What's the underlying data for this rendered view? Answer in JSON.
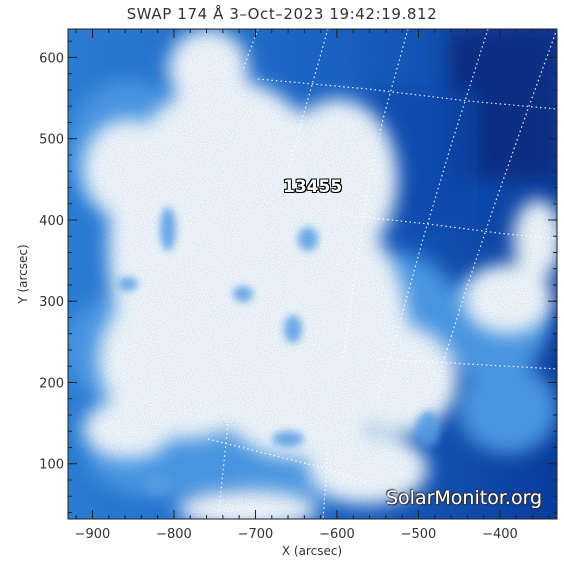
{
  "title": "SWAP  174 Å   3–Oct–2023 19:42:19.812",
  "image": {
    "instrument": "SWAP",
    "wavelength": "174 Å",
    "date": "3–Oct–2023",
    "time": "19:42:19.812"
  },
  "colormap": {
    "bright": "#ffffff",
    "mid": "#3f8fe0",
    "dark": "#0b3fa0",
    "deep": "#072c80"
  },
  "active_region": {
    "number": "13455"
  },
  "watermark": "SolarMonitor.org",
  "axes": {
    "x_label": "X (arcsec)",
    "y_label": "Y (arcsec)",
    "x_range": [
      -930,
      -330
    ],
    "y_range": [
      32,
      635
    ],
    "x_ticks": [
      {
        "value": -900,
        "label": "−900"
      },
      {
        "value": -800,
        "label": "−800"
      },
      {
        "value": -700,
        "label": "−700"
      },
      {
        "value": -600,
        "label": "−600"
      },
      {
        "value": -500,
        "label": "−500"
      },
      {
        "value": -400,
        "label": "−400"
      }
    ],
    "y_ticks": [
      {
        "value": 100,
        "label": "100"
      },
      {
        "value": 200,
        "label": "200"
      },
      {
        "value": 300,
        "label": "300"
      },
      {
        "value": 400,
        "label": "400"
      },
      {
        "value": 500,
        "label": "500"
      },
      {
        "value": 600,
        "label": "600"
      }
    ]
  }
}
